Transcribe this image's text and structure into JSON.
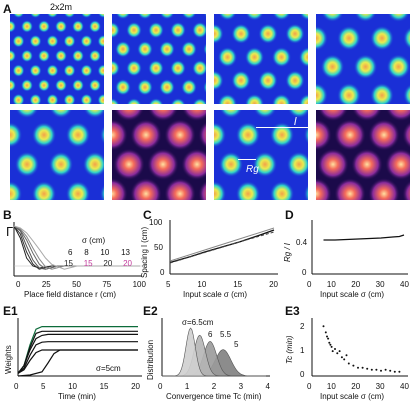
{
  "figure": {
    "panel_A": {
      "label": "A",
      "scale_note": "2x2m",
      "colors": {
        "bg": "#1a2fd6",
        "ring": "#2fd4c9",
        "mid": "#eaeb4f",
        "core": "#f2a24a"
      },
      "bottom_colors": {
        "bg": "#1b0a4a",
        "mid": "#8a2b9c",
        "hot": "#f56c5a",
        "core": "#ffe1a0"
      },
      "annot_l": "l",
      "annot_rg": "Rg"
    },
    "panel_B": {
      "label": "B",
      "ylabel": "Γ",
      "xlabel": "Place field distance r (cm)",
      "xticks": [
        "0",
        "25",
        "50",
        "75",
        "100"
      ],
      "legend_title": "σ (cm)",
      "legend_row1": [
        "6",
        "8",
        "10",
        "13"
      ],
      "legend_row2": [
        "15",
        "15",
        "20",
        "20"
      ],
      "legend_row2_colors": [
        "#222222",
        "#c0389a",
        "#222222",
        "#c0389a"
      ]
    },
    "panel_C": {
      "label": "C",
      "ylabel": "Spacing l (cm)",
      "xlabel": "Input scale σ (cm)",
      "xticks": [
        "5",
        "10",
        "15",
        "20"
      ],
      "yticks": [
        "0",
        "50",
        "100"
      ]
    },
    "panel_D": {
      "label": "D",
      "ylabel": "Rg / l",
      "xlabel": "Input scale σ (cm)",
      "xticks": [
        "0",
        "10",
        "20",
        "30",
        "40"
      ],
      "yticks": [
        "0",
        "0.4"
      ]
    },
    "panel_E1": {
      "label": "E1",
      "ylabel": "Weights",
      "xlabel": "Time (min)",
      "xticks": [
        "0",
        "5",
        "10",
        "15",
        "20"
      ],
      "annotation": "σ=5cm"
    },
    "panel_E2": {
      "label": "E2",
      "ylabel": "Distribution",
      "xlabel": "Convergence time Tc (min)",
      "xticks": [
        "0",
        "1",
        "2",
        "3",
        "4"
      ],
      "peak_labels": [
        "σ=6.5cm",
        "6",
        "5.5",
        "5"
      ]
    },
    "panel_E3": {
      "label": "E3",
      "ylabel": "Tc (min)",
      "xlabel": "Input scale σ (cm)",
      "xticks": [
        "0",
        "10",
        "20",
        "30",
        "40"
      ],
      "yticks": [
        "0",
        "1",
        "2"
      ]
    }
  },
  "chart_data": [
    {
      "type": "line",
      "panel": "B",
      "xlabel": "Place field distance r (cm)",
      "ylabel": "Γ",
      "xlim": [
        0,
        100
      ],
      "series": [
        {
          "name": "6",
          "x": [
            0,
            5,
            10,
            15,
            20,
            30,
            100
          ],
          "y": [
            1.0,
            0.7,
            0.2,
            0.0,
            -0.05,
            0.0,
            0.0
          ]
        },
        {
          "name": "8",
          "x": [
            0,
            5,
            10,
            15,
            20,
            30,
            100
          ],
          "y": [
            1.0,
            0.8,
            0.35,
            0.05,
            -0.08,
            0.0,
            0.0
          ]
        },
        {
          "name": "10",
          "x": [
            0,
            5,
            10,
            15,
            20,
            25,
            35,
            100
          ],
          "y": [
            1.0,
            0.88,
            0.5,
            0.15,
            -0.05,
            -0.08,
            0.0,
            0.0
          ]
        },
        {
          "name": "13",
          "x": [
            0,
            5,
            10,
            15,
            20,
            25,
            35,
            100
          ],
          "y": [
            1.0,
            0.9,
            0.65,
            0.32,
            0.05,
            -0.08,
            0.0,
            0.0
          ]
        },
        {
          "name": "15",
          "x": [
            0,
            5,
            10,
            15,
            20,
            25,
            30,
            40,
            100
          ],
          "y": [
            1.0,
            0.93,
            0.74,
            0.45,
            0.18,
            -0.02,
            -0.08,
            0.0,
            0.0
          ]
        },
        {
          "name": "20",
          "x": [
            0,
            5,
            10,
            15,
            20,
            25,
            30,
            40,
            50,
            100
          ],
          "y": [
            1.0,
            0.95,
            0.83,
            0.63,
            0.42,
            0.2,
            0.04,
            -0.08,
            0.0,
            0.0
          ]
        }
      ]
    },
    {
      "type": "line",
      "panel": "C",
      "xlabel": "Input scale σ (cm)",
      "ylabel": "Spacing l (cm)",
      "xlim": [
        5,
        20
      ],
      "ylim": [
        0,
        100
      ],
      "series": [
        {
          "x": [
            5,
            8,
            10,
            12,
            15,
            18,
            20
          ],
          "y": [
            23,
            35,
            44,
            52,
            64,
            78,
            88
          ]
        },
        {
          "x": [
            5,
            10,
            15,
            20
          ],
          "y": [
            22,
            43,
            64,
            84
          ]
        },
        {
          "x": [
            5,
            10,
            15,
            20
          ],
          "y": [
            26,
            48,
            70,
            92
          ]
        }
      ]
    },
    {
      "type": "line",
      "panel": "D",
      "xlabel": "Input scale σ (cm)",
      "ylabel": "Rg / l",
      "xlim": [
        0,
        40
      ],
      "ylim": [
        0,
        0.5
      ],
      "series": [
        {
          "x": [
            5,
            10,
            15,
            20,
            25,
            30,
            35,
            38,
            40
          ],
          "y": [
            0.34,
            0.34,
            0.345,
            0.35,
            0.355,
            0.36,
            0.37,
            0.375,
            0.39
          ]
        }
      ]
    },
    {
      "type": "line",
      "panel": "E1",
      "xlabel": "Time (min)",
      "ylabel": "Weights",
      "xlim": [
        0,
        20
      ],
      "series": [
        {
          "x": [
            0,
            1,
            2,
            3,
            4,
            20
          ],
          "y": [
            0.05,
            0.2,
            0.6,
            0.9,
            0.95,
            0.95
          ]
        },
        {
          "x": [
            0,
            1,
            2,
            3,
            4,
            20
          ],
          "y": [
            0.05,
            0.2,
            0.55,
            0.82,
            0.86,
            0.86
          ]
        },
        {
          "x": [
            0,
            1,
            2,
            3,
            4,
            5,
            20
          ],
          "y": [
            0.05,
            0.2,
            0.5,
            0.72,
            0.78,
            0.8,
            0.8
          ]
        },
        {
          "x": [
            0,
            1,
            2,
            3,
            4,
            5,
            20
          ],
          "y": [
            0.05,
            0.15,
            0.4,
            0.6,
            0.65,
            0.66,
            0.66
          ]
        },
        {
          "x": [
            0,
            1,
            2,
            3,
            4,
            5,
            20
          ],
          "y": [
            0.05,
            0.12,
            0.3,
            0.45,
            0.5,
            0.5,
            0.5
          ]
        },
        {
          "x": [
            0,
            2,
            4,
            5,
            6,
            7,
            20
          ],
          "y": [
            0.0,
            0.02,
            0.08,
            0.25,
            0.43,
            0.5,
            0.5
          ]
        }
      ]
    },
    {
      "type": "area",
      "panel": "E2",
      "xlabel": "Convergence time Tc (min)",
      "ylabel": "Distribution",
      "xlim": [
        0,
        4
      ],
      "series": [
        {
          "name": "σ=6.5cm",
          "center": 1.1,
          "width": 0.18,
          "peak": 1.0
        },
        {
          "name": "6",
          "center": 1.45,
          "width": 0.22,
          "peak": 0.85
        },
        {
          "name": "5.5",
          "center": 1.85,
          "width": 0.25,
          "peak": 0.72
        },
        {
          "name": "5",
          "center": 2.35,
          "width": 0.3,
          "peak": 0.55
        }
      ]
    },
    {
      "type": "scatter",
      "panel": "E3",
      "xlabel": "Input scale σ (cm)",
      "ylabel": "Tc (min)",
      "xlim": [
        0,
        40
      ],
      "ylim": [
        0,
        2.6
      ],
      "series": [
        {
          "x": [
            5,
            6,
            6.5,
            7,
            7.5,
            8,
            8.5,
            9,
            10,
            11,
            12,
            13,
            14,
            15,
            16,
            18,
            20,
            22,
            24,
            26,
            28,
            30,
            32,
            34,
            36,
            38
          ],
          "y": [
            2.4,
            2.1,
            1.9,
            1.8,
            1.6,
            1.5,
            1.4,
            1.2,
            1.3,
            1.1,
            1.2,
            0.9,
            0.8,
            1.0,
            0.6,
            0.5,
            0.4,
            0.4,
            0.35,
            0.3,
            0.3,
            0.25,
            0.3,
            0.25,
            0.2,
            0.2
          ]
        }
      ]
    }
  ]
}
